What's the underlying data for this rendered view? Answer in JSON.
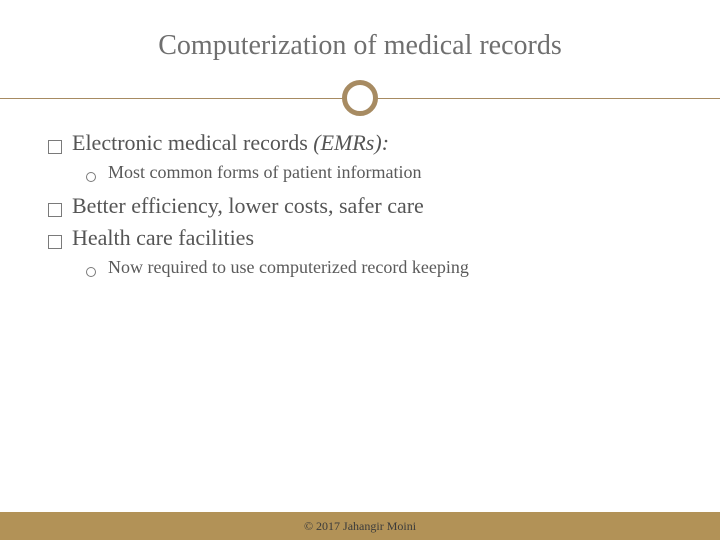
{
  "slide": {
    "title": "Computerization of medical records",
    "title_fontsize": 28,
    "title_color": "#6f6f6f",
    "divider": {
      "line_color": "#a78b62",
      "ring_color": "#a78b62",
      "ring_border_width": 5
    },
    "bullets": [
      {
        "type": "main",
        "text_plain": "Electronic medical records",
        "text_italic": " (EMRs):",
        "fontsize": 22,
        "color": "#555555"
      },
      {
        "type": "sub",
        "text": "Most common forms of patient information",
        "fontsize": 18,
        "color": "#5a5a5a"
      },
      {
        "type": "main",
        "text_plain": "Better efficiency, lower costs, safer care",
        "text_italic": "",
        "fontsize": 22,
        "color": "#555555"
      },
      {
        "type": "main",
        "text_plain": "Health care facilities",
        "text_italic": "",
        "fontsize": 22,
        "color": "#555555"
      },
      {
        "type": "sub",
        "text": "Now required to use computerized record keeping",
        "fontsize": 18,
        "color": "#5a5a5a"
      }
    ],
    "footer": {
      "text": "© 2017 Jahangir Moini",
      "fontsize": 12,
      "background_color": "#b29257",
      "text_color": "#3b3b3b"
    },
    "background_color": "#ffffff"
  }
}
